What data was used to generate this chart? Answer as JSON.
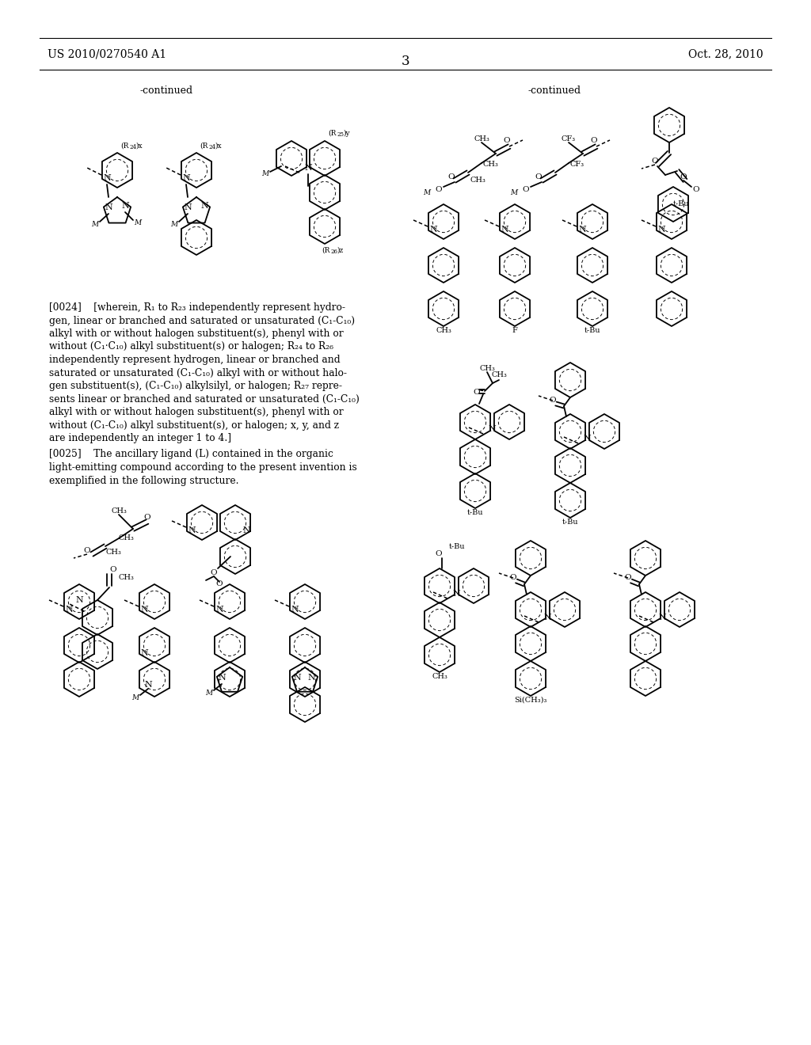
{
  "bg": "#ffffff",
  "header_left": "US 2010/0270540 A1",
  "header_right": "Oct. 28, 2010",
  "page_num": "3",
  "continued": "-continued",
  "para0024": "[0024]    [wherein, R1 to R23 independently represent hydrogen, linear or branched and saturated or unsaturated (C1-C10) alkyl with or without halogen substituent(s), phenyl with or without (C1·C10) alkyl substituent(s) or halogen; R24 to R26 independently represent hydrogen, linear or branched and saturated or unsaturated (C1-C10) alkyl with or without halogen substituent(s), (C1-C10) alkylsilyl, or halogen; R27 represents linear or branched and saturated or unsaturated (C1-C10) alkyl with or without halogen substituent(s), phenyl with or without (C1-C10) alkyl substituent(s), or halogen; x, y, and z are independently an integer 1 to 4.]",
  "para0025": "[0025]    The ancillary ligand (L) contained in the organic light-emitting compound according to the present invention is exemplified in the following structure."
}
